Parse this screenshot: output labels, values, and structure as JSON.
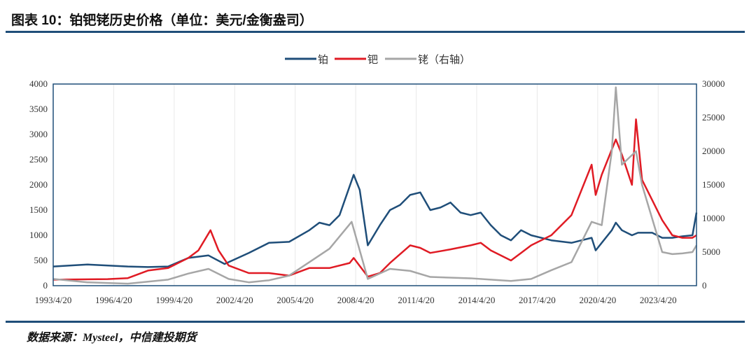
{
  "title": "图表 10：铂钯铑历史价格（单位：美元/金衡盎司）",
  "source": "数据来源：Mysteel，中信建投期货",
  "chart_data": {
    "type": "line",
    "title": "图表 10：铂钯铑历史价格（单位：美元/金衡盎司）",
    "x_ticks": [
      "1993/4/20",
      "1996/4/20",
      "1999/4/20",
      "2002/4/20",
      "2005/4/20",
      "2008/4/20",
      "2011/4/20",
      "2014/4/20",
      "2017/4/20",
      "2020/4/20",
      "2023/4/20"
    ],
    "x_range": [
      1993.3,
      2025.2
    ],
    "y_left": {
      "range": [
        0,
        4000
      ],
      "ticks": [
        "0",
        "500",
        "1000",
        "1500",
        "2000",
        "2500",
        "3000",
        "3500",
        "4000"
      ]
    },
    "y_right": {
      "range": [
        0,
        30000
      ],
      "ticks": [
        "0",
        "5000",
        "10000",
        "15000",
        "20000",
        "25000",
        "30000"
      ]
    },
    "legend_position": "top-right",
    "series": [
      {
        "name": "铂",
        "axis": "left",
        "color": "#1f4e79",
        "points": [
          [
            1993.3,
            380
          ],
          [
            1995,
            420
          ],
          [
            1997,
            380
          ],
          [
            1998,
            370
          ],
          [
            1999,
            380
          ],
          [
            2000,
            550
          ],
          [
            2001,
            600
          ],
          [
            2001.8,
            430
          ],
          [
            2003,
            650
          ],
          [
            2004,
            850
          ],
          [
            2005,
            870
          ],
          [
            2006,
            1100
          ],
          [
            2006.5,
            1250
          ],
          [
            2007,
            1200
          ],
          [
            2007.5,
            1400
          ],
          [
            2008.2,
            2200
          ],
          [
            2008.5,
            1900
          ],
          [
            2008.9,
            800
          ],
          [
            2009.5,
            1200
          ],
          [
            2010,
            1500
          ],
          [
            2010.5,
            1600
          ],
          [
            2011,
            1800
          ],
          [
            2011.5,
            1850
          ],
          [
            2012,
            1500
          ],
          [
            2012.5,
            1550
          ],
          [
            2013,
            1650
          ],
          [
            2013.5,
            1450
          ],
          [
            2014,
            1400
          ],
          [
            2014.5,
            1450
          ],
          [
            2015,
            1200
          ],
          [
            2015.5,
            1000
          ],
          [
            2016,
            900
          ],
          [
            2016.5,
            1100
          ],
          [
            2017,
            1000
          ],
          [
            2018,
            900
          ],
          [
            2019,
            850
          ],
          [
            2020,
            950
          ],
          [
            2020.2,
            700
          ],
          [
            2021,
            1100
          ],
          [
            2021.2,
            1250
          ],
          [
            2021.5,
            1100
          ],
          [
            2022,
            1000
          ],
          [
            2022.3,
            1050
          ],
          [
            2023,
            1050
          ],
          [
            2023.5,
            950
          ],
          [
            2024,
            950
          ],
          [
            2024.5,
            980
          ],
          [
            2025,
            1000
          ],
          [
            2025.2,
            1450
          ]
        ]
      },
      {
        "name": "钯",
        "axis": "left",
        "color": "#e01b24",
        "points": [
          [
            1993.3,
            120
          ],
          [
            1996,
            130
          ],
          [
            1997,
            150
          ],
          [
            1998,
            300
          ],
          [
            1999,
            350
          ],
          [
            2000,
            550
          ],
          [
            2000.5,
            700
          ],
          [
            2001.1,
            1100
          ],
          [
            2001.5,
            700
          ],
          [
            2002,
            400
          ],
          [
            2003,
            250
          ],
          [
            2004,
            250
          ],
          [
            2005,
            200
          ],
          [
            2006,
            350
          ],
          [
            2007,
            350
          ],
          [
            2008,
            450
          ],
          [
            2008.2,
            550
          ],
          [
            2008.9,
            180
          ],
          [
            2009.5,
            250
          ],
          [
            2010,
            450
          ],
          [
            2011,
            800
          ],
          [
            2011.5,
            750
          ],
          [
            2012,
            650
          ],
          [
            2013,
            720
          ],
          [
            2014,
            800
          ],
          [
            2014.5,
            850
          ],
          [
            2015,
            700
          ],
          [
            2016,
            500
          ],
          [
            2016.5,
            650
          ],
          [
            2017,
            800
          ],
          [
            2018,
            1000
          ],
          [
            2019,
            1400
          ],
          [
            2020,
            2400
          ],
          [
            2020.2,
            1800
          ],
          [
            2020.5,
            2200
          ],
          [
            2021.2,
            2900
          ],
          [
            2021.5,
            2600
          ],
          [
            2022,
            2000
          ],
          [
            2022.2,
            3300
          ],
          [
            2022.5,
            2100
          ],
          [
            2023,
            1700
          ],
          [
            2023.5,
            1300
          ],
          [
            2024,
            1000
          ],
          [
            2024.5,
            950
          ],
          [
            2025,
            950
          ],
          [
            2025.2,
            1000
          ]
        ]
      },
      {
        "name": "铑（右轴）",
        "axis": "right",
        "color": "#a6a6a6",
        "points": [
          [
            1993.3,
            1000
          ],
          [
            1995,
            500
          ],
          [
            1997,
            300
          ],
          [
            1999,
            900
          ],
          [
            2000,
            1800
          ],
          [
            2001,
            2500
          ],
          [
            2002,
            1000
          ],
          [
            2003,
            500
          ],
          [
            2004,
            800
          ],
          [
            2005,
            1500
          ],
          [
            2006,
            3500
          ],
          [
            2007,
            5500
          ],
          [
            2008.1,
            9500
          ],
          [
            2008.9,
            1000
          ],
          [
            2010,
            2500
          ],
          [
            2011,
            2200
          ],
          [
            2012,
            1300
          ],
          [
            2014,
            1100
          ],
          [
            2015,
            900
          ],
          [
            2016,
            700
          ],
          [
            2017,
            1000
          ],
          [
            2018,
            2300
          ],
          [
            2019,
            3500
          ],
          [
            2020,
            9500
          ],
          [
            2020.5,
            9000
          ],
          [
            2021,
            20000
          ],
          [
            2021.2,
            29500
          ],
          [
            2021.5,
            18000
          ],
          [
            2022.2,
            20000
          ],
          [
            2022.5,
            15000
          ],
          [
            2023,
            10000
          ],
          [
            2023.5,
            5000
          ],
          [
            2024,
            4700
          ],
          [
            2024.5,
            4800
          ],
          [
            2025,
            5000
          ],
          [
            2025.2,
            6000
          ]
        ]
      }
    ]
  }
}
